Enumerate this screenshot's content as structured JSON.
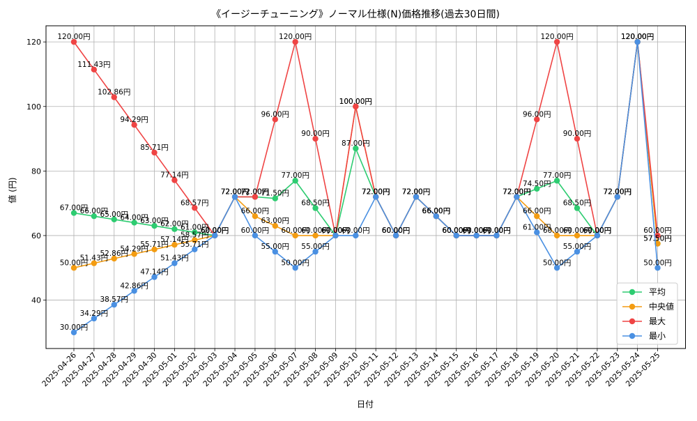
{
  "chart_data": {
    "type": "line",
    "title": "《イージーチューニング》ノーマル仕様(N)価格推移(過去30日間)",
    "xlabel": "日付",
    "ylabel": "値 (円)",
    "label_suffix": "円",
    "ylim": [
      25,
      125
    ],
    "yticks": [
      40,
      60,
      80,
      100,
      120
    ],
    "grid": true,
    "legend_position": "lower-right",
    "categories": [
      "2025-04-26",
      "2025-04-27",
      "2025-04-28",
      "2025-04-29",
      "2025-04-30",
      "2025-05-01",
      "2025-05-02",
      "2025-05-03",
      "2025-05-04",
      "2025-05-05",
      "2025-05-06",
      "2025-05-07",
      "2025-05-08",
      "2025-05-09",
      "2025-05-10",
      "2025-05-11",
      "2025-05-12",
      "2025-05-13",
      "2025-05-14",
      "2025-05-15",
      "2025-05-16",
      "2025-05-17",
      "2025-05-18",
      "2025-05-19",
      "2025-05-20",
      "2025-05-21",
      "2025-05-22",
      "2025-05-23",
      "2025-05-24",
      "2025-05-25"
    ],
    "series": [
      {
        "name": "平均",
        "color": "#2ecc71",
        "values": [
          67.0,
          66.0,
          65.0,
          64.0,
          63.0,
          62.0,
          61.0,
          60.0,
          72.0,
          72.0,
          71.5,
          77.0,
          68.5,
          60.0,
          87.0,
          72.0,
          60.0,
          72.0,
          66.0,
          60.0,
          60.0,
          60.0,
          72.0,
          74.5,
          77.0,
          68.5,
          60.0,
          72.0,
          120.0,
          57.5
        ]
      },
      {
        "name": "中央値",
        "color": "#f39c12",
        "values": [
          50.0,
          51.43,
          52.86,
          54.29,
          55.71,
          57.14,
          58.57,
          60.0,
          72.0,
          66.0,
          63.0,
          60.0,
          60.0,
          60.0,
          100.0,
          72.0,
          60.0,
          72.0,
          66.0,
          60.0,
          60.0,
          60.0,
          72.0,
          66.0,
          60.0,
          60.0,
          60.0,
          72.0,
          120.0,
          57.5
        ]
      },
      {
        "name": "最大",
        "color": "#ef4444",
        "values": [
          120.0,
          111.43,
          102.86,
          94.29,
          85.71,
          77.14,
          68.57,
          60.0,
          72.0,
          72.0,
          96.0,
          120.0,
          90.0,
          60.0,
          100.0,
          72.0,
          60.0,
          72.0,
          66.0,
          60.0,
          60.0,
          60.0,
          72.0,
          96.0,
          120.0,
          90.0,
          60.0,
          72.0,
          120.0,
          60.0
        ]
      },
      {
        "name": "最小",
        "color": "#4a90e2",
        "values": [
          30.0,
          34.29,
          38.57,
          42.86,
          47.14,
          51.43,
          55.71,
          60.0,
          72.0,
          60.0,
          55.0,
          50.0,
          55.0,
          60.0,
          60.0,
          72.0,
          60.0,
          72.0,
          66.0,
          60.0,
          60.0,
          60.0,
          72.0,
          61.0,
          50.0,
          55.0,
          60.0,
          72.0,
          120.0,
          50.0
        ]
      }
    ]
  }
}
